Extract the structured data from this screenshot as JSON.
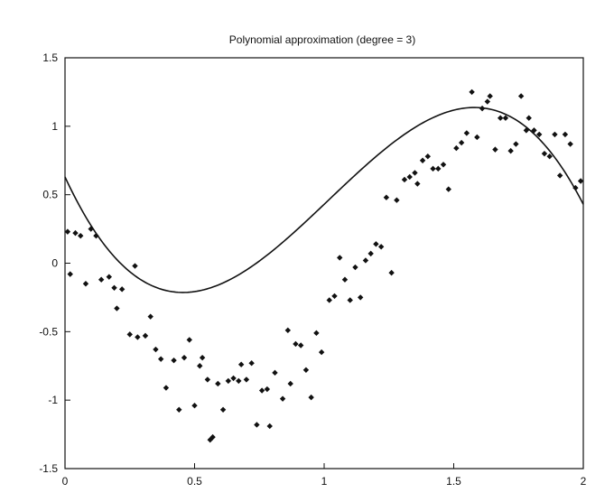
{
  "chart_data": {
    "type": "scatter",
    "title": "Polynomial approximation (degree = 3)",
    "xlabel": "",
    "ylabel": "",
    "xlim": [
      0,
      2
    ],
    "ylim": [
      -1.5,
      1.5
    ],
    "x_ticks": [
      0,
      0.5,
      1,
      1.5,
      2
    ],
    "x_tick_labels": [
      "0",
      "0.5",
      "1",
      "1.5",
      "2"
    ],
    "y_ticks": [
      1.5,
      1,
      0.5,
      0,
      -0.5,
      -1,
      -1.5
    ],
    "y_tick_labels": [
      "1.5",
      "1",
      "0.5",
      "0",
      "-0.5",
      "-1",
      "-1.5"
    ],
    "grid": false,
    "legend": "none",
    "colors": {
      "axis": "#111111",
      "points": "#111111",
      "curve": "#111111",
      "background": "#ffffff"
    },
    "series": [
      {
        "kind": "scatter",
        "marker": "diamond",
        "points": [
          [
            0.01,
            0.23
          ],
          [
            0.02,
            -0.08
          ],
          [
            0.04,
            0.22
          ],
          [
            0.06,
            0.2
          ],
          [
            0.08,
            -0.15
          ],
          [
            0.1,
            0.25
          ],
          [
            0.12,
            0.2
          ],
          [
            0.14,
            -0.12
          ],
          [
            0.17,
            -0.1
          ],
          [
            0.19,
            -0.18
          ],
          [
            0.2,
            -0.33
          ],
          [
            0.22,
            -0.19
          ],
          [
            0.25,
            -0.52
          ],
          [
            0.27,
            -0.02
          ],
          [
            0.28,
            -0.54
          ],
          [
            0.31,
            -0.53
          ],
          [
            0.33,
            -0.39
          ],
          [
            0.35,
            -0.63
          ],
          [
            0.37,
            -0.7
          ],
          [
            0.39,
            -0.91
          ],
          [
            0.42,
            -0.71
          ],
          [
            0.44,
            -1.07
          ],
          [
            0.46,
            -0.69
          ],
          [
            0.48,
            -0.56
          ],
          [
            0.5,
            -1.04
          ],
          [
            0.52,
            -0.75
          ],
          [
            0.53,
            -0.69
          ],
          [
            0.55,
            -0.85
          ],
          [
            0.56,
            -1.29
          ],
          [
            0.57,
            -1.27
          ],
          [
            0.59,
            -0.88
          ],
          [
            0.61,
            -1.07
          ],
          [
            0.63,
            -0.86
          ],
          [
            0.65,
            -0.84
          ],
          [
            0.67,
            -0.86
          ],
          [
            0.68,
            -0.74
          ],
          [
            0.7,
            -0.85
          ],
          [
            0.72,
            -0.73
          ],
          [
            0.74,
            -1.18
          ],
          [
            0.76,
            -0.93
          ],
          [
            0.78,
            -0.92
          ],
          [
            0.79,
            -1.19
          ],
          [
            0.81,
            -0.8
          ],
          [
            0.84,
            -0.99
          ],
          [
            0.86,
            -0.49
          ],
          [
            0.87,
            -0.88
          ],
          [
            0.89,
            -0.59
          ],
          [
            0.91,
            -0.6
          ],
          [
            0.93,
            -0.78
          ],
          [
            0.95,
            -0.98
          ],
          [
            0.97,
            -0.51
          ],
          [
            0.99,
            -0.65
          ],
          [
            1.02,
            -0.27
          ],
          [
            1.04,
            -0.24
          ],
          [
            1.06,
            0.04
          ],
          [
            1.08,
            -0.12
          ],
          [
            1.1,
            -0.27
          ],
          [
            1.12,
            -0.03
          ],
          [
            1.14,
            -0.25
          ],
          [
            1.16,
            0.02
          ],
          [
            1.18,
            0.07
          ],
          [
            1.2,
            0.14
          ],
          [
            1.22,
            0.12
          ],
          [
            1.24,
            0.48
          ],
          [
            1.26,
            -0.07
          ],
          [
            1.28,
            0.46
          ],
          [
            1.31,
            0.61
          ],
          [
            1.33,
            0.63
          ],
          [
            1.35,
            0.66
          ],
          [
            1.36,
            0.58
          ],
          [
            1.38,
            0.75
          ],
          [
            1.4,
            0.78
          ],
          [
            1.42,
            0.69
          ],
          [
            1.44,
            0.69
          ],
          [
            1.46,
            0.72
          ],
          [
            1.48,
            0.54
          ],
          [
            1.51,
            0.84
          ],
          [
            1.53,
            0.88
          ],
          [
            1.55,
            0.95
          ],
          [
            1.57,
            1.25
          ],
          [
            1.59,
            0.92
          ],
          [
            1.61,
            1.13
          ],
          [
            1.63,
            1.18
          ],
          [
            1.64,
            1.22
          ],
          [
            1.66,
            0.83
          ],
          [
            1.68,
            1.06
          ],
          [
            1.7,
            1.06
          ],
          [
            1.72,
            0.82
          ],
          [
            1.74,
            0.87
          ],
          [
            1.76,
            1.22
          ],
          [
            1.78,
            0.97
          ],
          [
            1.79,
            1.06
          ],
          [
            1.81,
            0.97
          ],
          [
            1.83,
            0.94
          ],
          [
            1.85,
            0.8
          ],
          [
            1.87,
            0.78
          ],
          [
            1.89,
            0.94
          ],
          [
            1.91,
            0.64
          ],
          [
            1.93,
            0.94
          ],
          [
            1.95,
            0.87
          ],
          [
            1.97,
            0.55
          ],
          [
            1.99,
            0.6
          ]
        ]
      },
      {
        "kind": "line",
        "style": "solid",
        "polynomial_coefficients_high_to_low": [
          -1.9,
          5.8,
          -4.1,
          0.63
        ],
        "x_range": [
          0,
          2
        ]
      }
    ]
  }
}
